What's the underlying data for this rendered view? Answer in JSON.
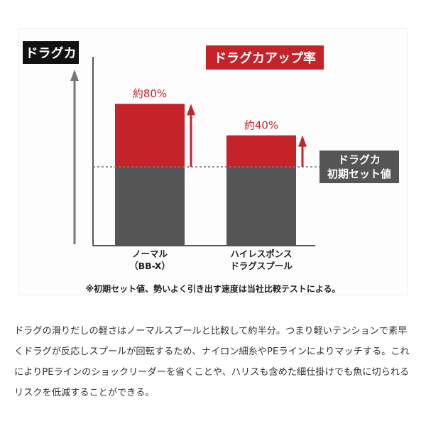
{
  "chart_data": {
    "type": "bar",
    "title": "ドラグカアップ率",
    "ylabel": "ドラグカ",
    "categories": [
      [
        "ノーマル",
        "（BB-X）"
      ],
      [
        "ハイレスポンス",
        "ドラグスプール"
      ]
    ],
    "baseline_value": 1.0,
    "baseline_label": [
      "ドラグカ",
      "初期セット値"
    ],
    "values": [
      1.8,
      1.4
    ],
    "data_labels": [
      "約80%",
      "約40%"
    ],
    "ylim": [
      0,
      2.3
    ],
    "colors": {
      "increase": "#c5232a",
      "base": "#555555",
      "arrow": "#c5232a",
      "axis": "#555555"
    }
  },
  "footnote": "※初期セット値、勢いよく引き出す速度は当社比較テストによる。",
  "description": [
    "ドラグの滑りだしの軽さはノーマルスプールと比較して約半分。つまり軽いテンションで素早",
    "くドラグが反応しスプールが回転するため、ナイロン細糸やPEラインによりマッチする。これ",
    "によりPEラインのショックリーダーを省くことや、ハリスも含めた細仕掛けでも魚に切られる",
    "リスクを低減することができる。"
  ]
}
